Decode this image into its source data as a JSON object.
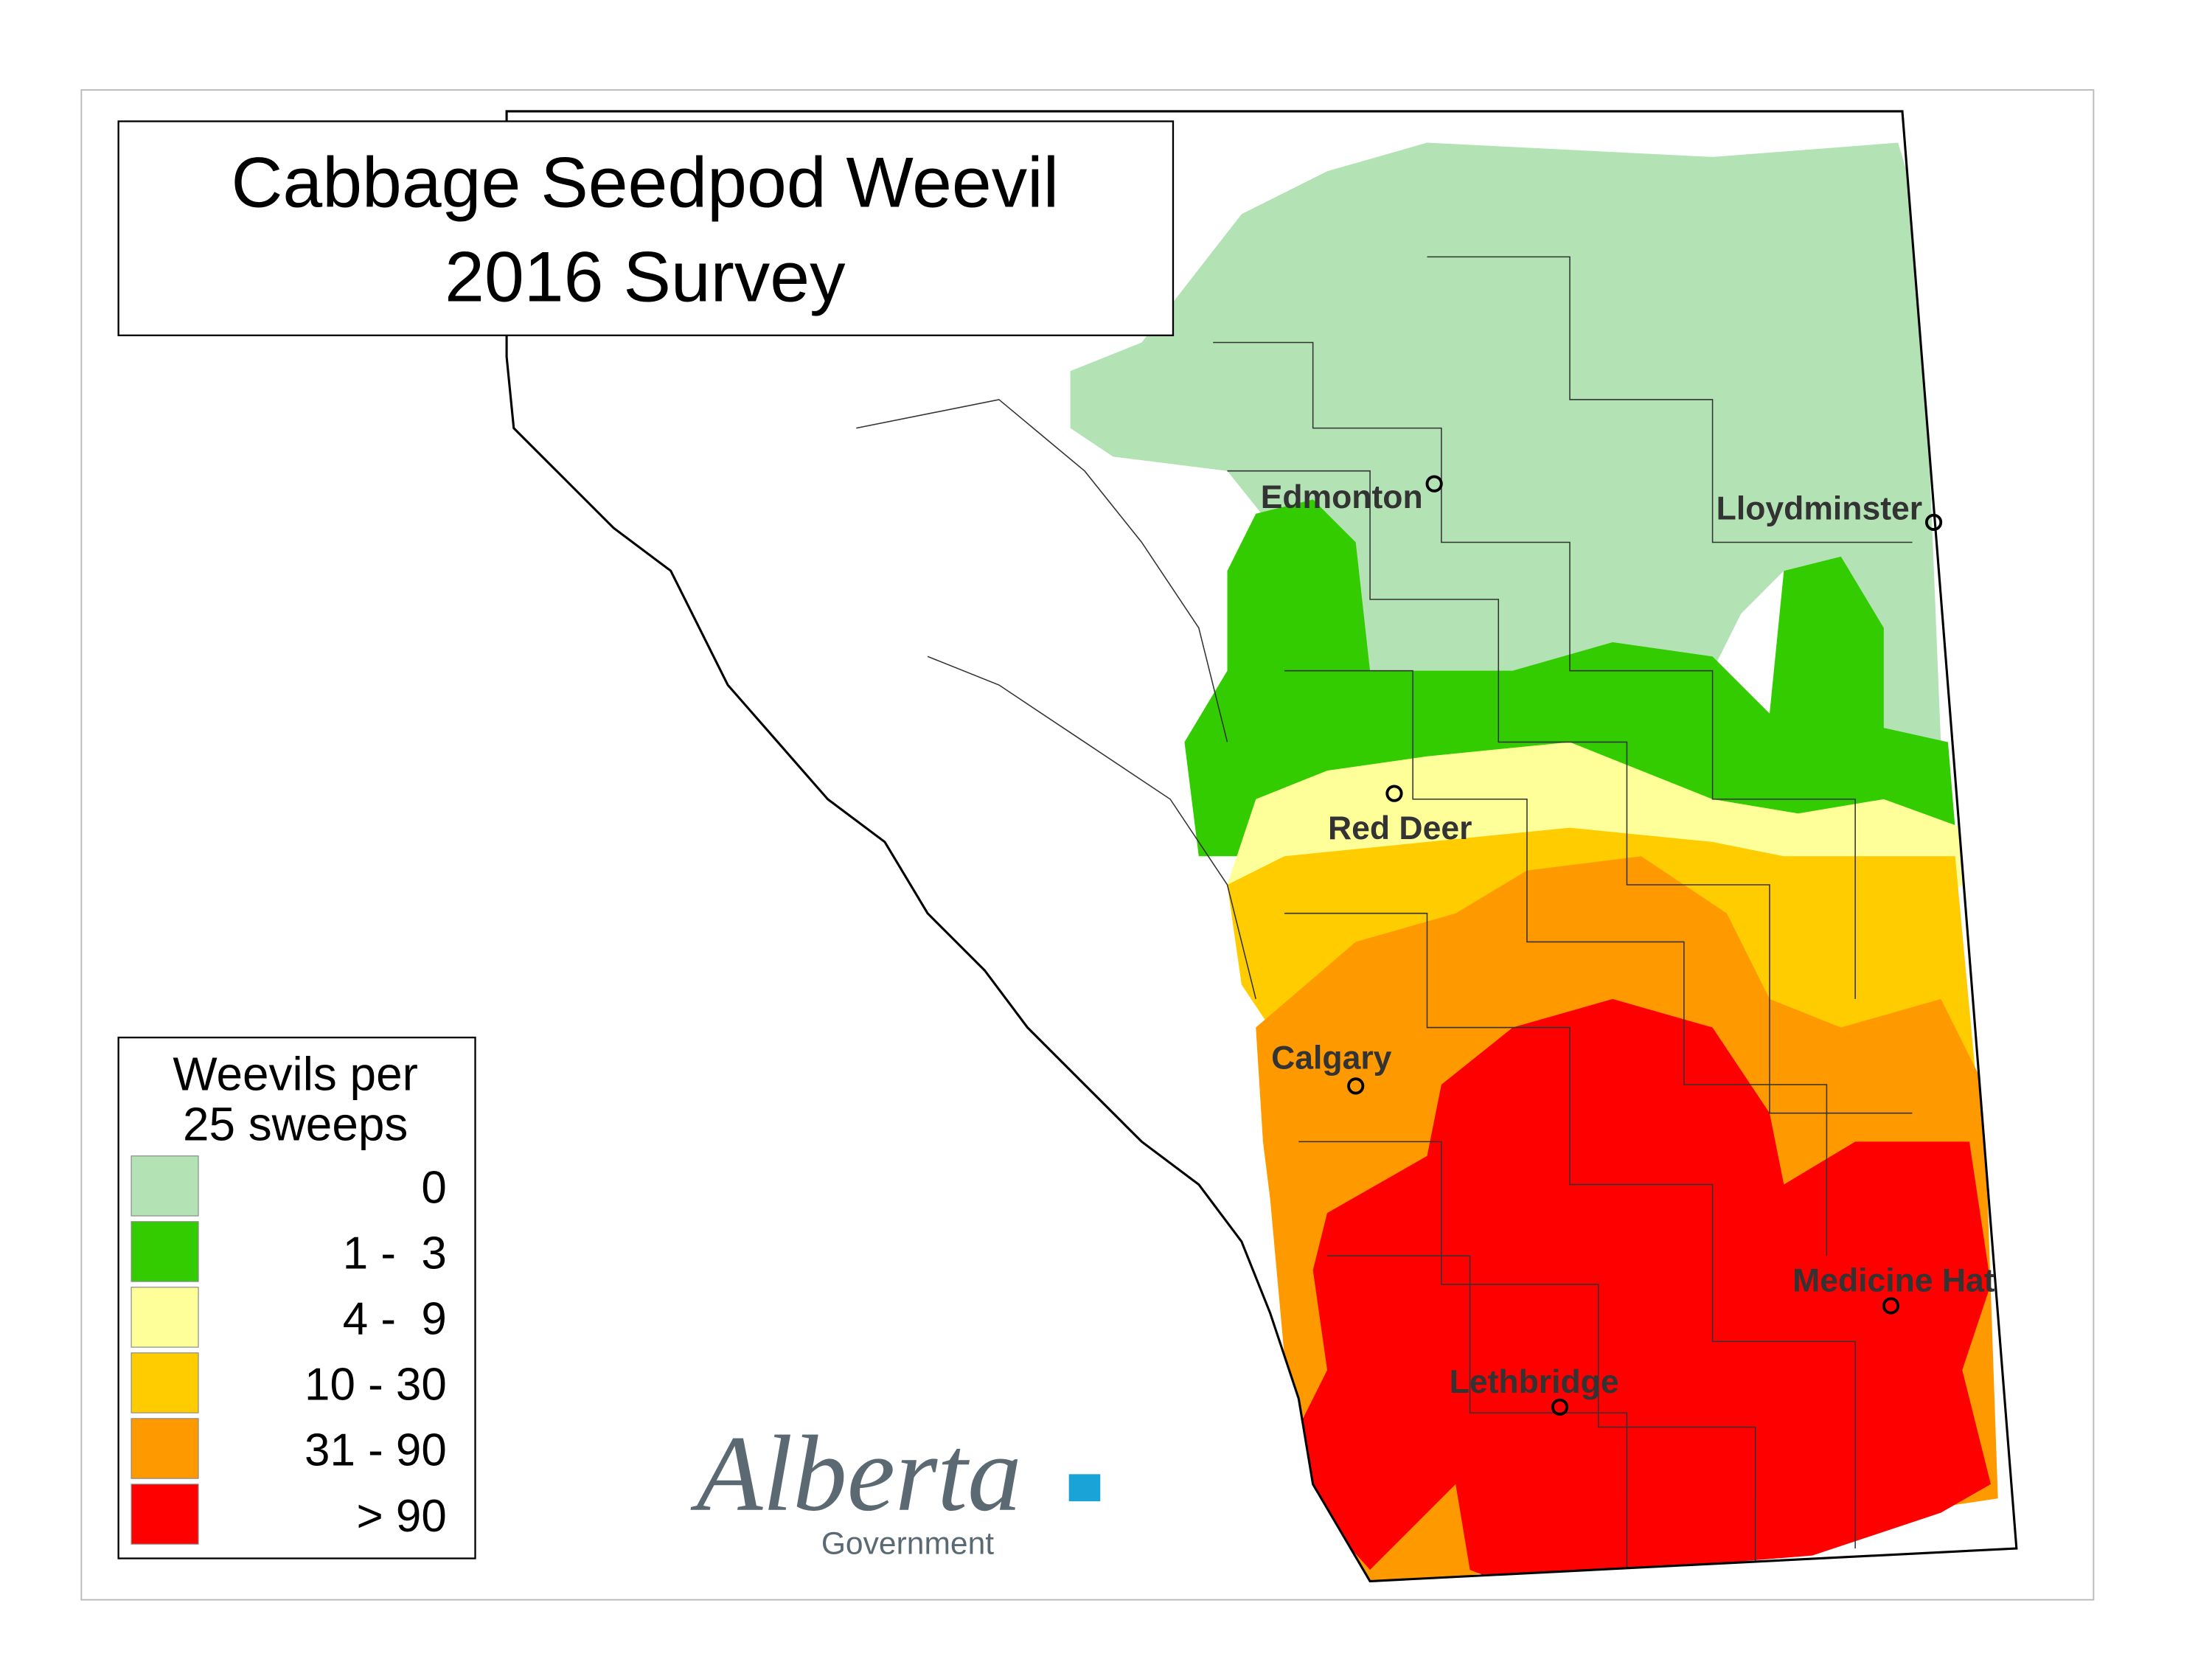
{
  "title": {
    "lines": [
      "Cabbage Seedpod Weevil",
      "2016 Survey"
    ]
  },
  "legend": {
    "title_lines": [
      "Weevils per",
      "25 sweeps"
    ],
    "items": [
      {
        "label": "0",
        "color": "#b3e3b5"
      },
      {
        "label": "1 -  3",
        "color": "#33cc00"
      },
      {
        "label": "4 -  9",
        "color": "#ffff99"
      },
      {
        "label": "10 - 30",
        "color": "#ffcc00"
      },
      {
        "label": "31 - 90",
        "color": "#ff9900"
      },
      {
        "label": "> 90",
        "color": "#ff0000"
      }
    ]
  },
  "cities": [
    {
      "name": "Edmonton"
    },
    {
      "name": "Lloydminster"
    },
    {
      "name": "Red Deer"
    },
    {
      "name": "Calgary"
    },
    {
      "name": "Lethbridge"
    },
    {
      "name": "Medicine Hat"
    }
  ],
  "logo": {
    "wordmark": "Alberta",
    "subtitle": "Government"
  }
}
